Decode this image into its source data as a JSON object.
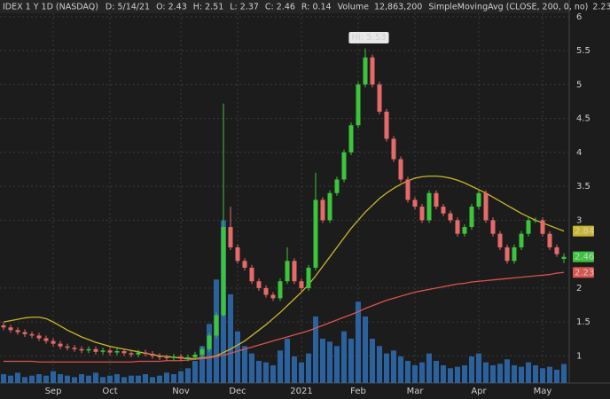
{
  "chart_data": {
    "type": "candlestick",
    "header": {
      "symbol": "IDEX 1 Y 1D (NASDAQ)",
      "date_label": "D:",
      "date": "5/14/21",
      "open_label": "O:",
      "high_label": "H:",
      "low_label": "L:",
      "close_label": "C:",
      "range_label": "R:",
      "range": 0.14
    },
    "annotation": "Hi: 5.53",
    "categories": [
      null,
      null,
      null,
      null,
      null,
      null,
      null,
      "Sep",
      null,
      null,
      null,
      null,
      null,
      null,
      null,
      "Oct",
      null,
      null,
      null,
      null,
      null,
      null,
      null,
      null,
      null,
      "Nov",
      null,
      null,
      null,
      null,
      null,
      null,
      null,
      "Dec",
      null,
      null,
      null,
      null,
      null,
      null,
      null,
      null,
      "2021",
      null,
      null,
      null,
      null,
      null,
      null,
      null,
      "Feb",
      null,
      null,
      null,
      null,
      null,
      null,
      null,
      "Mar",
      null,
      null,
      null,
      null,
      null,
      null,
      null,
      null,
      "Apr",
      null,
      null,
      null,
      null,
      null,
      null,
      null,
      null,
      "May",
      null,
      null,
      null
    ],
    "ohlc": {
      "up_color": "#3cc43c",
      "down_color": "#e66a6a",
      "open": [
        1.45,
        1.42,
        1.38,
        1.35,
        1.32,
        1.3,
        1.26,
        1.22,
        1.18,
        1.14,
        1.12,
        1.1,
        1.08,
        1.1,
        1.06,
        1.08,
        1.05,
        1.07,
        1.04,
        1.02,
        1.05,
        1.03,
        1.0,
        0.98,
        0.97,
        0.99,
        0.96,
        0.98,
        1.02,
        1.1,
        1.3,
        1.6,
        2.9,
        2.6,
        2.4,
        2.3,
        2.1,
        2.0,
        1.9,
        1.85,
        2.1,
        2.4,
        2.1,
        2.0,
        2.3,
        3.3,
        3.0,
        3.4,
        3.6,
        4.0,
        4.4,
        5.0,
        5.4,
        5.0,
        4.6,
        4.2,
        3.9,
        3.6,
        3.3,
        3.2,
        3.0,
        3.4,
        3.2,
        3.1,
        3.0,
        2.8,
        2.9,
        3.2,
        3.4,
        3.0,
        2.8,
        2.6,
        2.4,
        2.6,
        2.8,
        3.0,
        3.0,
        2.8,
        2.6,
        2.43
      ],
      "high": [
        1.49,
        1.46,
        1.42,
        1.39,
        1.36,
        1.34,
        1.3,
        1.26,
        1.22,
        1.18,
        1.16,
        1.14,
        1.14,
        1.14,
        1.12,
        1.12,
        1.11,
        1.11,
        1.08,
        1.09,
        1.09,
        1.07,
        1.04,
        1.02,
        1.03,
        1.03,
        1.02,
        1.06,
        1.14,
        1.34,
        1.64,
        4.72,
        3.2,
        2.64,
        2.44,
        2.34,
        2.14,
        2.04,
        1.94,
        2.14,
        2.6,
        2.44,
        2.14,
        2.34,
        3.7,
        3.34,
        3.44,
        3.64,
        4.04,
        4.44,
        5.04,
        5.53,
        5.44,
        5.04,
        4.64,
        4.24,
        3.94,
        3.64,
        3.34,
        3.24,
        3.44,
        3.44,
        3.24,
        3.14,
        3.04,
        2.94,
        3.24,
        3.44,
        3.44,
        3.04,
        2.84,
        2.64,
        2.64,
        2.84,
        3.04,
        3.04,
        3.04,
        2.84,
        2.64,
        2.51
      ],
      "low": [
        1.38,
        1.34,
        1.31,
        1.28,
        1.26,
        1.22,
        1.18,
        1.14,
        1.1,
        1.08,
        1.06,
        1.04,
        1.04,
        1.02,
        1.02,
        1.01,
        1.01,
        1.0,
        0.98,
        0.98,
        0.99,
        0.96,
        0.94,
        0.93,
        0.93,
        0.92,
        0.92,
        0.94,
        0.98,
        1.06,
        1.26,
        1.58,
        2.56,
        2.36,
        2.26,
        2.06,
        1.96,
        1.86,
        1.81,
        1.81,
        2.06,
        2.06,
        1.96,
        1.96,
        2.26,
        2.96,
        2.96,
        3.36,
        3.56,
        3.96,
        4.36,
        4.96,
        4.96,
        4.56,
        4.16,
        3.86,
        3.56,
        3.26,
        3.16,
        2.96,
        2.96,
        3.16,
        3.06,
        2.96,
        2.76,
        2.76,
        2.86,
        3.16,
        2.96,
        2.76,
        2.56,
        2.36,
        2.36,
        2.56,
        2.76,
        2.96,
        2.76,
        2.56,
        2.46,
        2.37
      ],
      "close": [
        1.42,
        1.38,
        1.35,
        1.32,
        1.3,
        1.26,
        1.22,
        1.18,
        1.14,
        1.12,
        1.1,
        1.08,
        1.1,
        1.06,
        1.08,
        1.05,
        1.07,
        1.04,
        1.02,
        1.05,
        1.03,
        1.0,
        0.98,
        0.97,
        0.99,
        0.96,
        0.98,
        1.02,
        1.1,
        1.3,
        1.6,
        2.9,
        2.6,
        2.4,
        2.3,
        2.1,
        2.0,
        1.9,
        1.85,
        2.1,
        2.4,
        2.1,
        2.0,
        2.3,
        3.3,
        3.0,
        3.4,
        3.6,
        4.0,
        4.4,
        5.0,
        5.4,
        5.0,
        4.6,
        4.2,
        3.9,
        3.6,
        3.3,
        3.2,
        3.0,
        3.4,
        3.2,
        3.1,
        3.0,
        2.8,
        2.9,
        3.2,
        3.4,
        3.0,
        2.8,
        2.6,
        2.4,
        2.6,
        2.8,
        3.0,
        3.0,
        2.8,
        2.6,
        2.5,
        2.46
      ]
    },
    "series": [
      {
        "name": "SimpleMoving",
        "color": "#c9b52a",
        "values": [
          1.5,
          1.52,
          1.54,
          1.56,
          1.57,
          1.57,
          1.55,
          1.5,
          1.44,
          1.38,
          1.33,
          1.28,
          1.24,
          1.2,
          1.17,
          1.14,
          1.12,
          1.1,
          1.08,
          1.06,
          1.04,
          1.02,
          1.0,
          0.99,
          0.98,
          0.97,
          0.96,
          0.96,
          0.97,
          0.98,
          1.0,
          1.05,
          1.1,
          1.16,
          1.22,
          1.3,
          1.38,
          1.46,
          1.55,
          1.64,
          1.74,
          1.84,
          1.94,
          2.05,
          2.18,
          2.32,
          2.46,
          2.6,
          2.74,
          2.88,
          3.0,
          3.12,
          3.22,
          3.32,
          3.4,
          3.47,
          3.53,
          3.58,
          3.62,
          3.64,
          3.65,
          3.65,
          3.64,
          3.62,
          3.59,
          3.55,
          3.5,
          3.45,
          3.4,
          3.34,
          3.28,
          3.22,
          3.16,
          3.1,
          3.05,
          3.0,
          2.96,
          2.92,
          2.88,
          2.84
        ]
      },
      {
        "name": "SimpleMovingAvg (CLOSE, 200, 0, no)",
        "color": "#d9534f",
        "values": [
          0.92,
          0.92,
          0.92,
          0.92,
          0.92,
          0.91,
          0.91,
          0.91,
          0.91,
          0.91,
          0.91,
          0.91,
          0.91,
          0.91,
          0.91,
          0.91,
          0.91,
          0.91,
          0.91,
          0.92,
          0.92,
          0.92,
          0.92,
          0.93,
          0.93,
          0.93,
          0.94,
          0.95,
          0.96,
          0.97,
          0.99,
          1.01,
          1.04,
          1.07,
          1.1,
          1.13,
          1.16,
          1.19,
          1.22,
          1.25,
          1.28,
          1.31,
          1.34,
          1.37,
          1.41,
          1.45,
          1.49,
          1.53,
          1.57,
          1.61,
          1.65,
          1.7,
          1.74,
          1.78,
          1.82,
          1.85,
          1.88,
          1.91,
          1.94,
          1.96,
          1.98,
          2.0,
          2.02,
          2.04,
          2.06,
          2.07,
          2.09,
          2.1,
          2.11,
          2.12,
          2.13,
          2.14,
          2.15,
          2.16,
          2.17,
          2.18,
          2.19,
          2.2,
          2.22,
          2.23
        ]
      }
    ],
    "volume": {
      "name": "Volume",
      "color": "#2e6db4",
      "last_value_label": "12,863,200",
      "values": [
        6000000,
        5000000,
        7000000,
        4000000,
        5000000,
        6000000,
        5000000,
        8000000,
        6000000,
        5000000,
        4000000,
        6000000,
        5000000,
        7000000,
        4000000,
        5000000,
        6000000,
        4000000,
        5000000,
        5000000,
        6000000,
        4000000,
        5000000,
        7000000,
        6000000,
        8000000,
        10000000,
        15000000,
        25000000,
        40000000,
        70000000,
        110000000,
        60000000,
        35000000,
        25000000,
        20000000,
        15000000,
        14000000,
        12000000,
        22000000,
        30000000,
        18000000,
        14000000,
        20000000,
        45000000,
        30000000,
        28000000,
        25000000,
        35000000,
        30000000,
        55000000,
        45000000,
        30000000,
        25000000,
        20000000,
        22000000,
        18000000,
        15000000,
        12000000,
        14000000,
        20000000,
        15000000,
        12000000,
        10000000,
        11000000,
        12000000,
        18000000,
        20000000,
        14000000,
        12000000,
        13000000,
        16000000,
        12000000,
        11000000,
        14000000,
        12000000,
        10000000,
        11000000,
        9000000,
        12863200
      ]
    },
    "ylim": [
      0.6,
      6.05
    ],
    "yticks": [
      1,
      1.5,
      2,
      3,
      3.5,
      4,
      4.5,
      5,
      5.5,
      6
    ],
    "y2lim": [
      0,
      250000000
    ],
    "grid": true
  }
}
